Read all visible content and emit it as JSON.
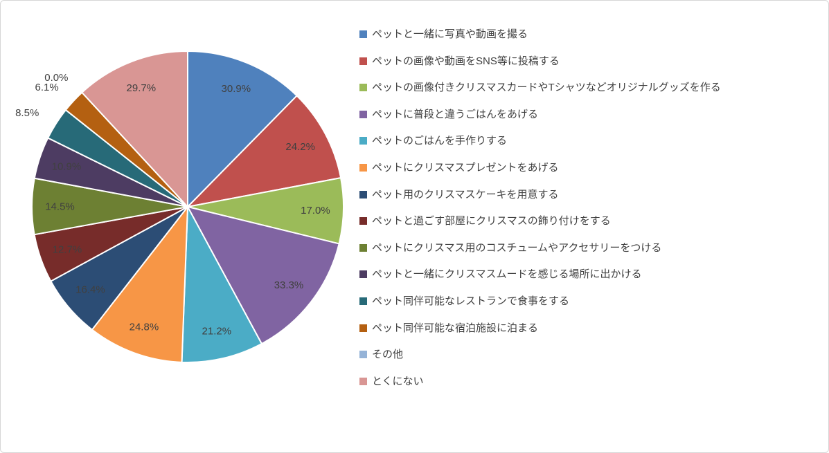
{
  "chart_data": {
    "type": "pie",
    "title": "",
    "legend_position": "right",
    "direction": "clockwise",
    "start_angle_deg": 0,
    "categories": [
      "ペットと一緒に写真や動画を撮る",
      "ペットの画像や動画をSNS等に投稿する",
      "ペットの画像付きクリスマスカードやTシャツなどオリジナルグッズを作る",
      "ペットに普段と違うごはんをあげる",
      "ペットのごはんを手作りする",
      "ペットにクリスマスプレゼントをあげる",
      "ペット用のクリスマスケーキを用意する",
      "ペットと過ごす部屋にクリスマスの飾り付けをする",
      "ペットにクリスマス用のコスチュームやアクセサリーをつける",
      "ペットと一緒にクリスマスムードを感じる場所に出かける",
      "ペット同伴可能なレストランで食事をする",
      "ペット同伴可能な宿泊施設に泊まる",
      "その他",
      "とくにない"
    ],
    "values": [
      30.9,
      24.2,
      17.0,
      33.3,
      21.2,
      24.8,
      16.4,
      12.7,
      14.5,
      10.9,
      8.5,
      6.1,
      0.0,
      29.7
    ],
    "data_labels": [
      "30.9%",
      "24.2%",
      "17.0%",
      "33.3%",
      "21.2%",
      "24.8%",
      "16.4%",
      "12.7%",
      "14.5%",
      "10.9%",
      "8.5%",
      "6.1%",
      "0.0%",
      "29.7%"
    ],
    "colors": [
      "#4F81BD",
      "#C0504D",
      "#9BBB59",
      "#8064A2",
      "#4BACC6",
      "#F79646",
      "#2C4D75",
      "#772C2A",
      "#6D8033",
      "#4D3C62",
      "#276A78",
      "#B46011",
      "#95B3D7",
      "#D99694"
    ],
    "label_text_color": "#404040",
    "slice_border_color": "#FFFFFF"
  }
}
